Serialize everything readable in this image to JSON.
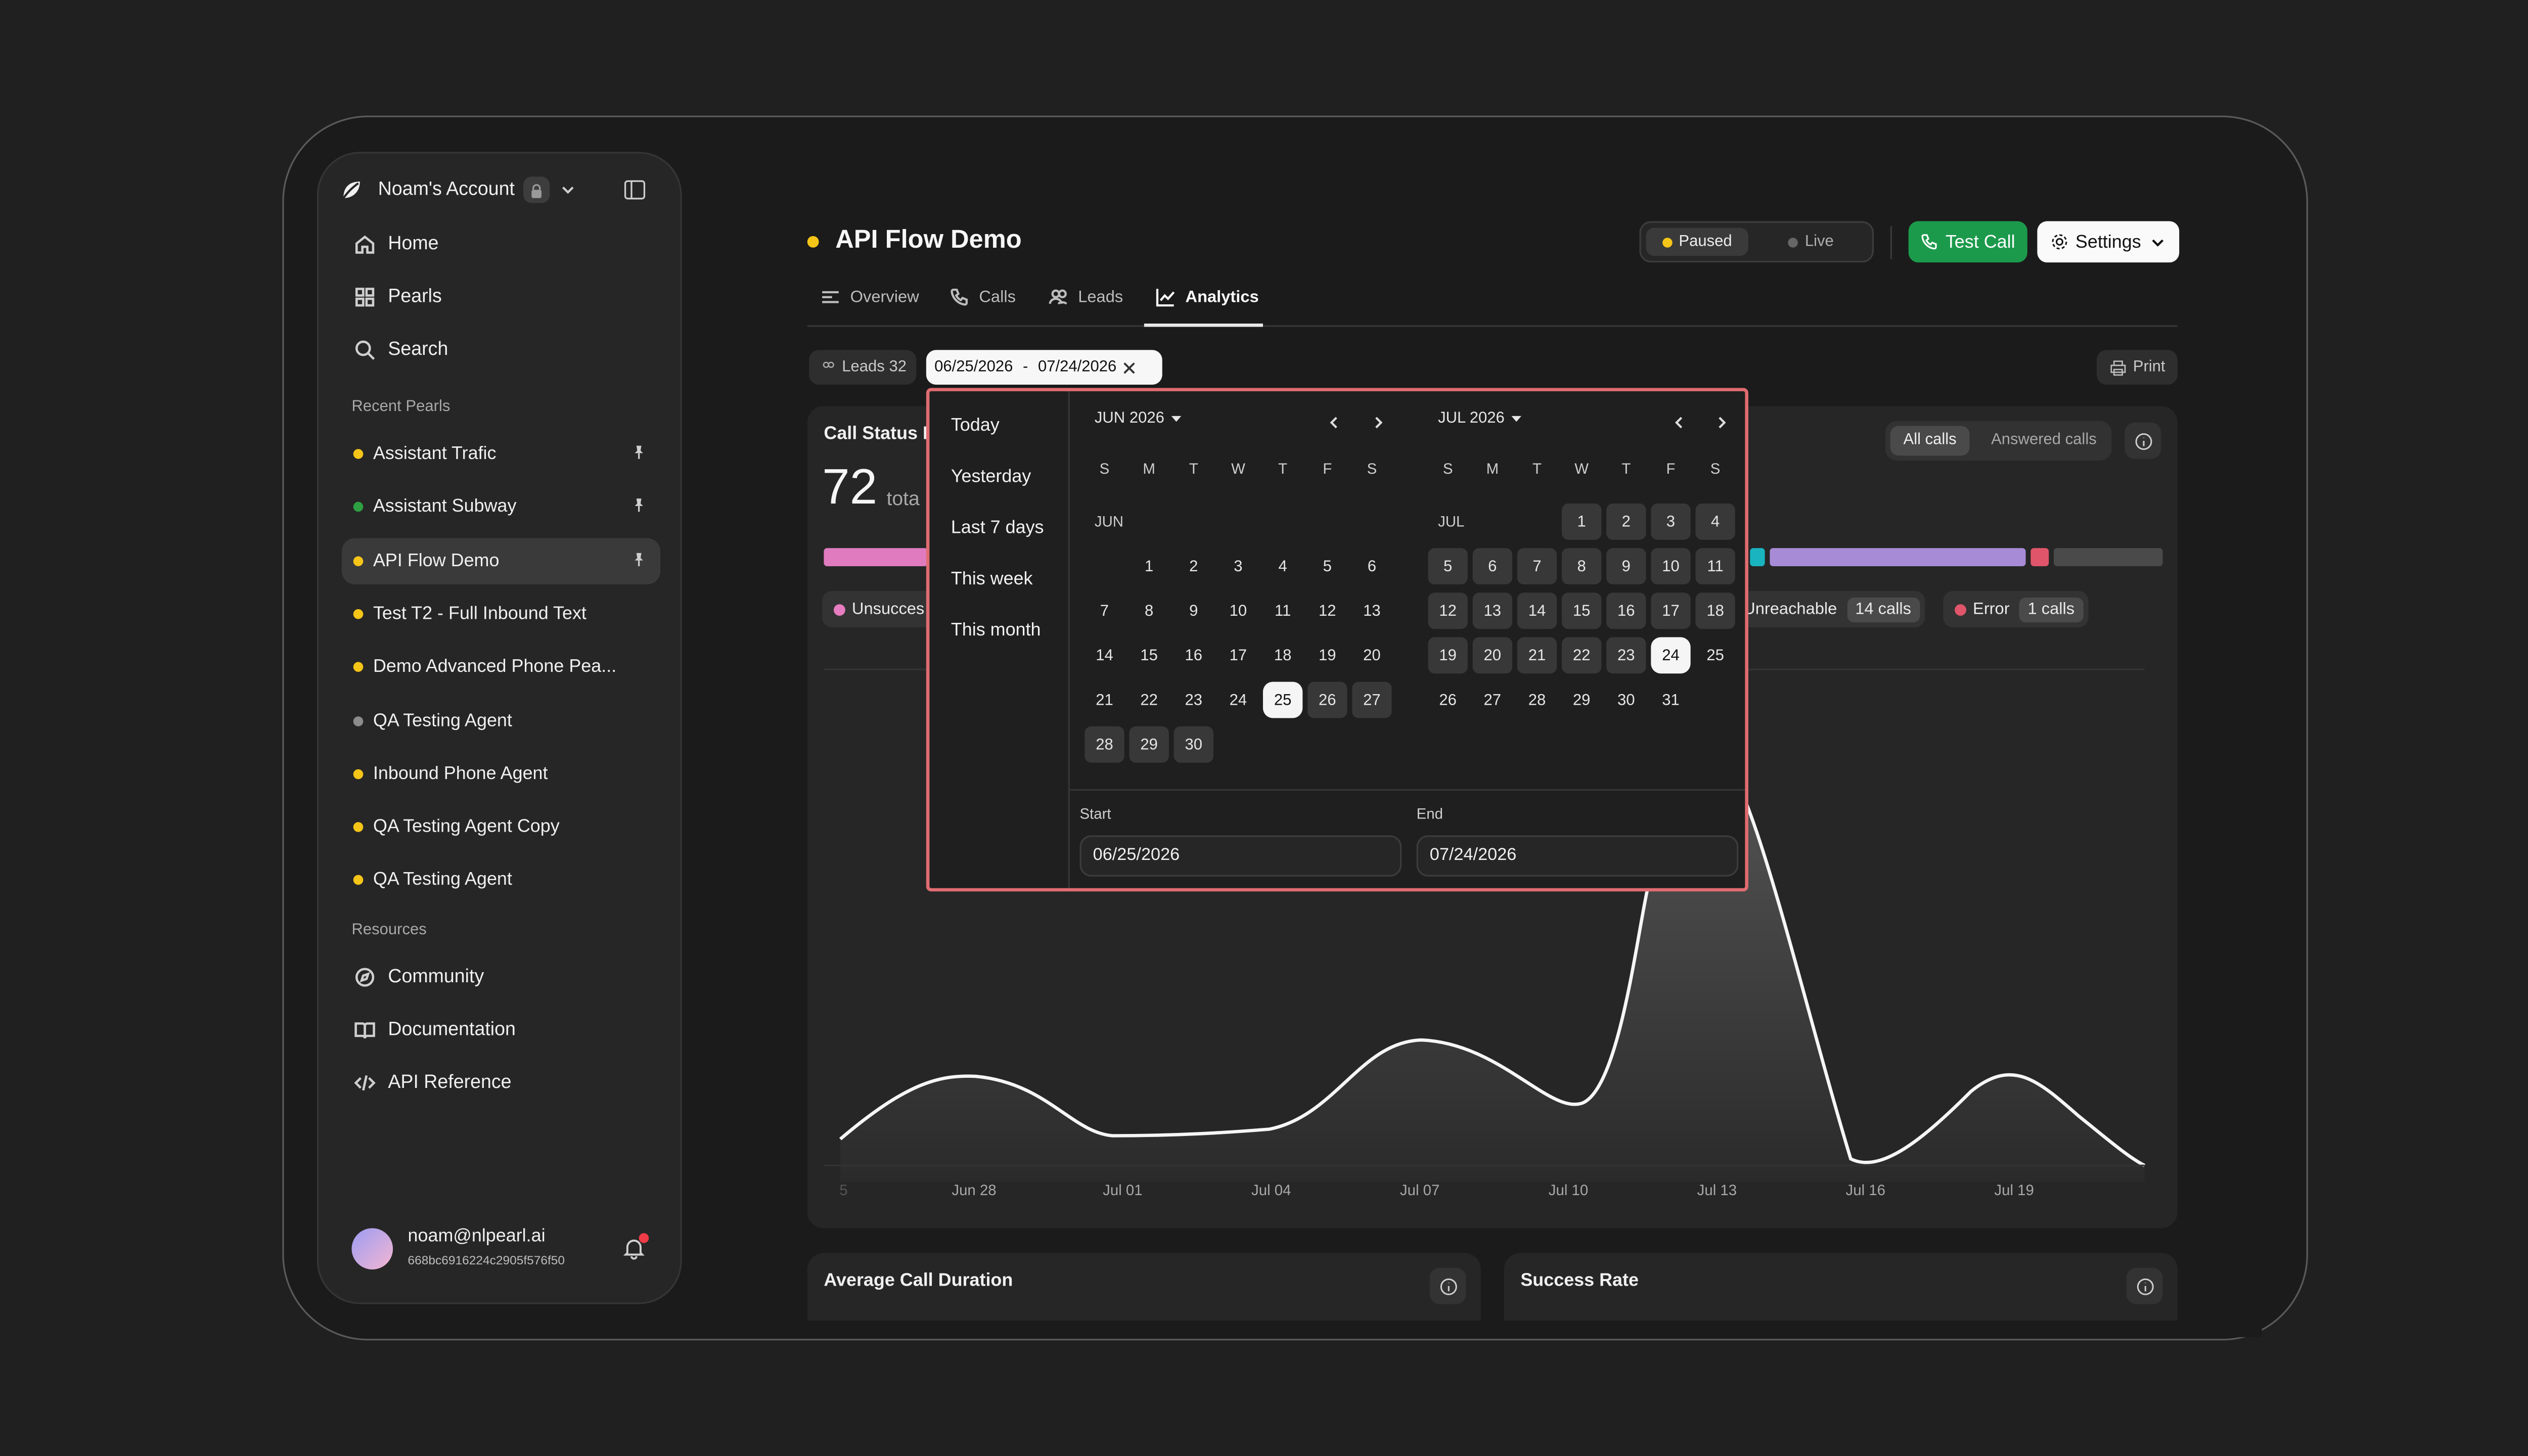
{
  "account": {
    "name": "Noam's Account"
  },
  "sidebar": {
    "nav": [
      {
        "label": "Home",
        "icon": "home-icon"
      },
      {
        "label": "Pearls",
        "icon": "grid-icon"
      },
      {
        "label": "Search",
        "icon": "search-icon"
      }
    ],
    "recent_label": "Recent Pearls",
    "pearls": [
      {
        "label": "Assistant Trafic",
        "color": "#f5c518",
        "pinned": true
      },
      {
        "label": "Assistant Subway",
        "color": "#2ea043",
        "pinned": true
      },
      {
        "label": "API Flow Demo",
        "color": "#f5c518",
        "pinned": true
      },
      {
        "label": "Test T2 - Full Inbound Text",
        "color": "#f5c518"
      },
      {
        "label": "Demo Advanced Phone Pea...",
        "color": "#f5c518"
      },
      {
        "label": "QA Testing Agent",
        "color": "#8c8c8c"
      },
      {
        "label": "Inbound Phone Agent",
        "color": "#f5c518"
      },
      {
        "label": "QA Testing Agent Copy",
        "color": "#f5c518"
      },
      {
        "label": "QA Testing Agent",
        "color": "#f5c518"
      }
    ],
    "resources_label": "Resources",
    "resources": [
      {
        "label": "Community",
        "icon": "compass-icon"
      },
      {
        "label": "Documentation",
        "icon": "book-icon"
      },
      {
        "label": "API Reference",
        "icon": "code-icon"
      }
    ],
    "user": {
      "email": "noam@nlpearl.ai",
      "id": "668bc6916224c2905f576f50"
    }
  },
  "header": {
    "title": "API Flow Demo",
    "status_dot": "#f5c518",
    "toggle": {
      "paused": "Paused",
      "live": "Live"
    },
    "test_call": "Test Call",
    "settings": "Settings"
  },
  "tabs": [
    {
      "label": "Overview"
    },
    {
      "label": "Calls"
    },
    {
      "label": "Leads"
    },
    {
      "label": "Analytics"
    }
  ],
  "filters": {
    "leads": "Leads 32",
    "start": "06/25/2026",
    "separator": "-",
    "end": "07/24/2026",
    "print": "Print"
  },
  "card": {
    "title": "Call Status B",
    "total": "72",
    "total_label": "tota",
    "segments": {
      "all": "All calls",
      "answered": "Answered calls"
    },
    "legend": [
      {
        "label": "Unsucces",
        "color": "#e77cc0"
      },
      {
        "label": "Unreachable",
        "count": "14 calls",
        "color": "#b58be0"
      },
      {
        "label": "Error",
        "count": "1 calls",
        "color": "#e0556a"
      }
    ]
  },
  "chart_data": {
    "type": "area",
    "x_ticks": [
      "5",
      "Jun 28",
      "Jul 01",
      "Jul 04",
      "Jul 07",
      "Jul 10",
      "Jul 13",
      "Jul 16",
      "Jul 19"
    ]
  },
  "bottom_cards": [
    {
      "title": "Average Call Duration"
    },
    {
      "title": "Success Rate"
    }
  ],
  "datepicker": {
    "quick": [
      "Today",
      "Yesterday",
      "Last 7 days",
      "This week",
      "This month"
    ],
    "left": {
      "title": "JUN 2026",
      "month_label": "JUN"
    },
    "right": {
      "title": "JUL 2026",
      "month_label": "JUL"
    },
    "weekdays": [
      "S",
      "M",
      "T",
      "W",
      "T",
      "F",
      "S"
    ],
    "start_label": "Start",
    "start_value": "06/25/2026",
    "end_label": "End",
    "end_value": "07/24/2026"
  }
}
